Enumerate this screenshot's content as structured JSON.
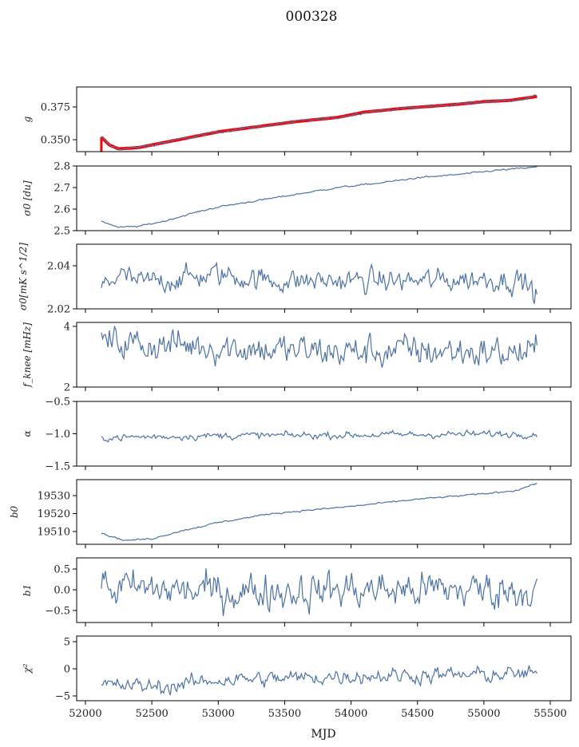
{
  "chart_data": {
    "type": "line",
    "title": "000328",
    "xlabel": "MJD",
    "xlim": [
      51934,
      55656
    ],
    "xticks": [
      52000,
      52500,
      53000,
      53500,
      54000,
      54500,
      55000,
      55500
    ],
    "x_range": [
      52120,
      55400
    ],
    "line_color": "#4c72a4",
    "fit_color": "#ff0000",
    "panels": [
      {
        "ylabel": "g",
        "ylim": [
          0.3409,
          0.3902
        ],
        "yticks": [
          "0.350",
          "0.375"
        ],
        "ytick_values": [
          0.35,
          0.375
        ],
        "trend": [
          [
            52120,
            0.352
          ],
          [
            52180,
            0.346
          ],
          [
            52250,
            0.343
          ],
          [
            52400,
            0.344
          ],
          [
            52600,
            0.348
          ],
          [
            52800,
            0.352
          ],
          [
            53000,
            0.356
          ],
          [
            53300,
            0.36
          ],
          [
            53600,
            0.364
          ],
          [
            53900,
            0.367
          ],
          [
            54100,
            0.371
          ],
          [
            54400,
            0.374
          ],
          [
            54800,
            0.377
          ],
          [
            55000,
            0.379
          ],
          [
            55200,
            0.38
          ],
          [
            55400,
            0.383
          ]
        ],
        "noise": 0.0006,
        "red_overlay": true
      },
      {
        "ylabel": "σ0 [du]",
        "ylim": [
          2.5,
          2.8
        ],
        "yticks": [
          "2.5",
          "2.6",
          "2.7",
          "2.8"
        ],
        "ytick_values": [
          2.5,
          2.6,
          2.7,
          2.8
        ],
        "trend": [
          [
            52120,
            2.545
          ],
          [
            52250,
            2.515
          ],
          [
            52400,
            2.52
          ],
          [
            52600,
            2.545
          ],
          [
            52800,
            2.58
          ],
          [
            53000,
            2.61
          ],
          [
            53300,
            2.64
          ],
          [
            53600,
            2.67
          ],
          [
            53900,
            2.7
          ],
          [
            54200,
            2.72
          ],
          [
            54500,
            2.745
          ],
          [
            54800,
            2.76
          ],
          [
            55100,
            2.78
          ],
          [
            55400,
            2.795
          ]
        ],
        "noise": 0.002
      },
      {
        "ylabel": "σ0[mK s^1/2]",
        "ylim": [
          2.02,
          2.05
        ],
        "yticks": [
          "2.02",
          "2.04"
        ],
        "ytick_values": [
          2.02,
          2.04
        ],
        "trend": [
          [
            52120,
            2.03
          ],
          [
            52250,
            2.036
          ],
          [
            52400,
            2.032
          ],
          [
            52700,
            2.034
          ],
          [
            53000,
            2.036
          ],
          [
            53400,
            2.033
          ],
          [
            54000,
            2.033
          ],
          [
            54600,
            2.033
          ],
          [
            55000,
            2.034
          ],
          [
            55300,
            2.033
          ],
          [
            55400,
            2.026
          ]
        ],
        "noise": 0.003
      },
      {
        "ylabel": "f_knee [mHz]",
        "ylim": [
          2,
          4.13
        ],
        "yticks": [
          "2",
          "4"
        ],
        "ytick_values": [
          2,
          4
        ],
        "trend": [
          [
            52120,
            3.5
          ],
          [
            52500,
            3.4
          ],
          [
            53000,
            3.35
          ],
          [
            53500,
            3.2
          ],
          [
            54000,
            3.15
          ],
          [
            54500,
            3.2
          ],
          [
            55000,
            3.15
          ],
          [
            55400,
            3.1
          ]
        ],
        "noise": 0.3
      },
      {
        "ylabel": "α",
        "ylim": [
          -1.5,
          -0.5
        ],
        "yticks": [
          "−1.5",
          "−1.0",
          "−0.5"
        ],
        "ytick_values": [
          -1.5,
          -1.0,
          -0.5
        ],
        "trend": [
          [
            52120,
            -1.06
          ],
          [
            53000,
            -1.03
          ],
          [
            54000,
            -1.02
          ],
          [
            55400,
            -1.0
          ]
        ],
        "noise": 0.03
      },
      {
        "ylabel": "b0",
        "ylim": [
          19502.9,
          19538.9
        ],
        "yticks": [
          "19510",
          "19520",
          "19530"
        ],
        "ytick_values": [
          19510,
          19520,
          19530
        ],
        "trend": [
          [
            52120,
            19509
          ],
          [
            52300,
            19505
          ],
          [
            52500,
            19506
          ],
          [
            52700,
            19510
          ],
          [
            53000,
            19515
          ],
          [
            53400,
            19520
          ],
          [
            54000,
            19524
          ],
          [
            54500,
            19528
          ],
          [
            55000,
            19531
          ],
          [
            55250,
            19533
          ],
          [
            55400,
            19537
          ]
        ],
        "noise": 0.25
      },
      {
        "ylabel": "b1",
        "ylim": [
          -0.79,
          0.77
        ],
        "yticks": [
          "−0.5",
          "0.0",
          "0.5"
        ],
        "ytick_values": [
          -0.5,
          0,
          0.5
        ],
        "trend": [
          [
            52120,
            0.05
          ],
          [
            53000,
            -0.05
          ],
          [
            54000,
            0.0
          ],
          [
            55400,
            0.0
          ]
        ],
        "noise": 0.25
      },
      {
        "ylabel": "χ²",
        "ylim": [
          -5.88,
          6.03
        ],
        "yticks": [
          "−5",
          "0",
          "5"
        ],
        "ytick_values": [
          -5,
          0,
          5
        ],
        "trend": [
          [
            52120,
            -3
          ],
          [
            52600,
            -3.3
          ],
          [
            53000,
            -2
          ],
          [
            53500,
            -1.8
          ],
          [
            54000,
            -1.3
          ],
          [
            54500,
            -1.2
          ],
          [
            55000,
            -1.1
          ],
          [
            55400,
            -1
          ]
        ],
        "noise": 0.8
      }
    ]
  }
}
